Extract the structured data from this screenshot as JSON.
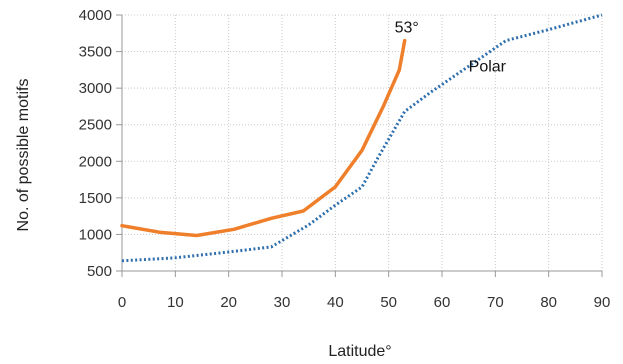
{
  "chart_data": {
    "type": "line",
    "xlabel": "Latitude°",
    "ylabel": "No. of possible motifs",
    "xlim": [
      0,
      90
    ],
    "ylim": [
      500,
      4000
    ],
    "xticks": [
      "0",
      "10",
      "20",
      "30",
      "40",
      "50",
      "60",
      "70",
      "80",
      "90"
    ],
    "yticks": [
      "500",
      "1000",
      "1500",
      "2000",
      "2500",
      "3000",
      "3500",
      "4000"
    ],
    "grid": true,
    "series": [
      {
        "name": "53°",
        "color": "#ef7f2a",
        "style": "solid",
        "x": [
          0,
          7,
          14,
          21,
          28,
          34,
          40,
          45,
          49,
          52,
          53
        ],
        "y": [
          1120,
          1030,
          985,
          1070,
          1220,
          1320,
          1650,
          2150,
          2750,
          3250,
          3650
        ]
      },
      {
        "name": "Polar",
        "color": "#2f6fae",
        "style": "dotted",
        "x": [
          0,
          10,
          20,
          28,
          35,
          40,
          45,
          48,
          53,
          58,
          64,
          72,
          80,
          90
        ],
        "y": [
          640,
          680,
          760,
          830,
          1130,
          1400,
          1650,
          2050,
          2680,
          2950,
          3250,
          3650,
          3800,
          4000
        ]
      }
    ]
  }
}
